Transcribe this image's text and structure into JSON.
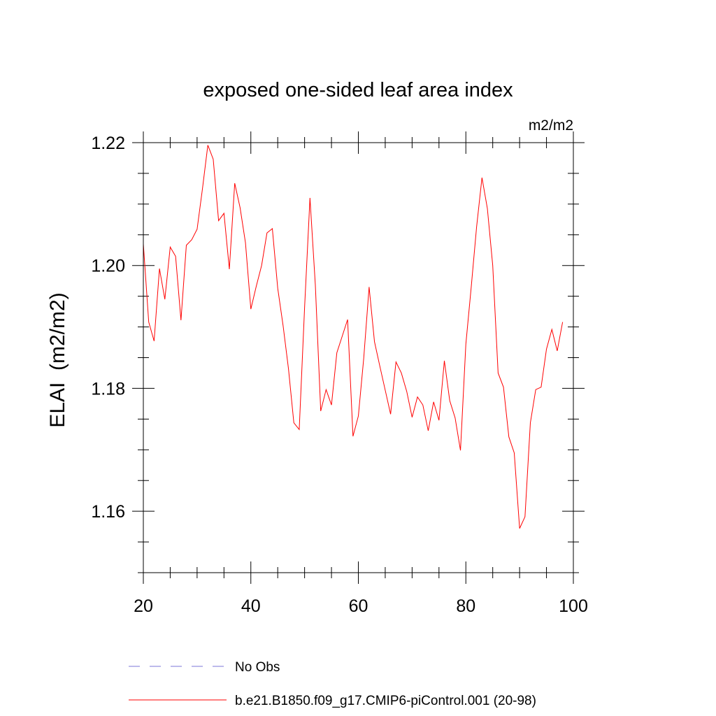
{
  "chart_data": {
    "type": "line",
    "title": "exposed one-sided leaf area index",
    "units_label": "m2/m2",
    "xlabel": "",
    "ylabel": "ELAI  (m2/m2)",
    "xlim": [
      20,
      100
    ],
    "ylim": [
      1.15,
      1.22
    ],
    "xticks": [
      20,
      40,
      60,
      80,
      100
    ],
    "xtick_labels": [
      "20",
      "40",
      "60",
      "80",
      "100"
    ],
    "yticks": [
      1.16,
      1.18,
      1.2,
      1.22
    ],
    "ytick_labels": [
      "1.16",
      "1.18",
      "1.20",
      "1.22"
    ],
    "x_minor_step": 5,
    "y_minor_step": 0.005,
    "grid": false,
    "legend_position": "bottom-left, below plot",
    "series": [
      {
        "name": "No Obs",
        "color": "#7b74d9",
        "dash": "dashed",
        "x": [],
        "values": []
      },
      {
        "name": "b.e21.B1850.f09_g17.CMIP6-piControl.001 (20-98)",
        "color": "#ff0000",
        "dash": "solid",
        "x": [
          20,
          21,
          22,
          23,
          24,
          25,
          26,
          27,
          28,
          29,
          30,
          31,
          32,
          33,
          34,
          35,
          36,
          37,
          38,
          39,
          40,
          41,
          42,
          43,
          44,
          45,
          46,
          47,
          48,
          49,
          50,
          51,
          52,
          53,
          54,
          55,
          56,
          57,
          58,
          59,
          60,
          61,
          62,
          63,
          64,
          65,
          66,
          67,
          68,
          69,
          70,
          71,
          72,
          73,
          74,
          75,
          76,
          77,
          78,
          79,
          80,
          81,
          82,
          83,
          84,
          85,
          86,
          87,
          88,
          89,
          90,
          91,
          92,
          93,
          94,
          95,
          96,
          97,
          98
        ],
        "values": [
          1.2035,
          1.1908,
          1.1877,
          1.1995,
          1.1945,
          1.203,
          1.2015,
          1.1911,
          1.2033,
          1.2042,
          1.2059,
          1.2125,
          1.2196,
          1.2173,
          1.2073,
          1.2085,
          1.1994,
          1.2134,
          1.2094,
          1.2037,
          1.1929,
          1.1966,
          1.2,
          1.2053,
          1.206,
          1.1963,
          1.1902,
          1.1832,
          1.1744,
          1.1733,
          1.1932,
          1.211,
          1.1968,
          1.1763,
          1.1798,
          1.1773,
          1.1858,
          1.1885,
          1.1912,
          1.1722,
          1.1755,
          1.1849,
          1.1965,
          1.1876,
          1.1836,
          1.1797,
          1.1758,
          1.1843,
          1.1825,
          1.1795,
          1.1753,
          1.1786,
          1.1773,
          1.1731,
          1.1778,
          1.1748,
          1.1845,
          1.178,
          1.1752,
          1.1699,
          1.1872,
          1.1965,
          1.2063,
          1.2143,
          1.2093,
          1.2,
          1.1825,
          1.1802,
          1.1721,
          1.1695,
          1.1572,
          1.1591,
          1.1744,
          1.1798,
          1.1802,
          1.1864,
          1.1896,
          1.1861,
          1.1908
        ]
      }
    ]
  }
}
